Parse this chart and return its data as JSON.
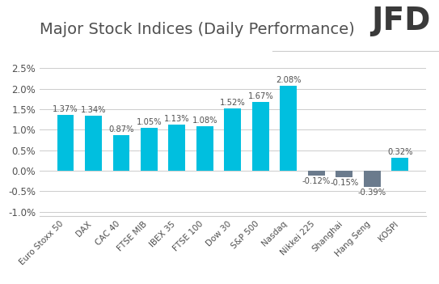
{
  "title": "Major Stock Indices (Daily Performance)",
  "categories": [
    "Euro Stoxx 50",
    "DAX",
    "CAC 40",
    "FTSE MIB",
    "IBEX 35",
    "FTSE 100",
    "Dow 30",
    "S&P 500",
    "Nasdaq",
    "Nikkei 225",
    "Shanghai",
    "Hang Seng",
    "KOSPI"
  ],
  "values": [
    1.37,
    1.34,
    0.87,
    1.05,
    1.13,
    1.08,
    1.52,
    1.67,
    2.08,
    -0.12,
    -0.15,
    -0.39,
    0.32
  ],
  "labels": [
    "1.37%",
    "1.34%",
    "0.87%",
    "1.05%",
    "1.13%",
    "1.08%",
    "1.52%",
    "1.67%",
    "2.08%",
    "-0.12%",
    "-0.15%",
    "-0.39%",
    "0.32%"
  ],
  "positive_color": "#00BFDF",
  "negative_color": "#6B7B8D",
  "background_color": "#FFFFFF",
  "grid_color": "#CCCCCC",
  "title_color": "#505050",
  "label_color": "#505050",
  "tick_color": "#505050",
  "ylim": [
    -1.1,
    2.78
  ],
  "yticks": [
    -1.0,
    -0.5,
    0.0,
    0.5,
    1.0,
    1.5,
    2.0,
    2.5
  ],
  "ytick_labels": [
    "-1.0%",
    "-0.5%",
    "0.0%",
    "0.5%",
    "1.0%",
    "1.5%",
    "2.0%",
    "2.5%"
  ],
  "title_fontsize": 14,
  "label_fontsize": 7.2,
  "tick_fontsize": 8.5,
  "bar_width": 0.6,
  "logo_text": "JFD",
  "logo_fontsize": 28,
  "logo_color": "#3A3A3A"
}
